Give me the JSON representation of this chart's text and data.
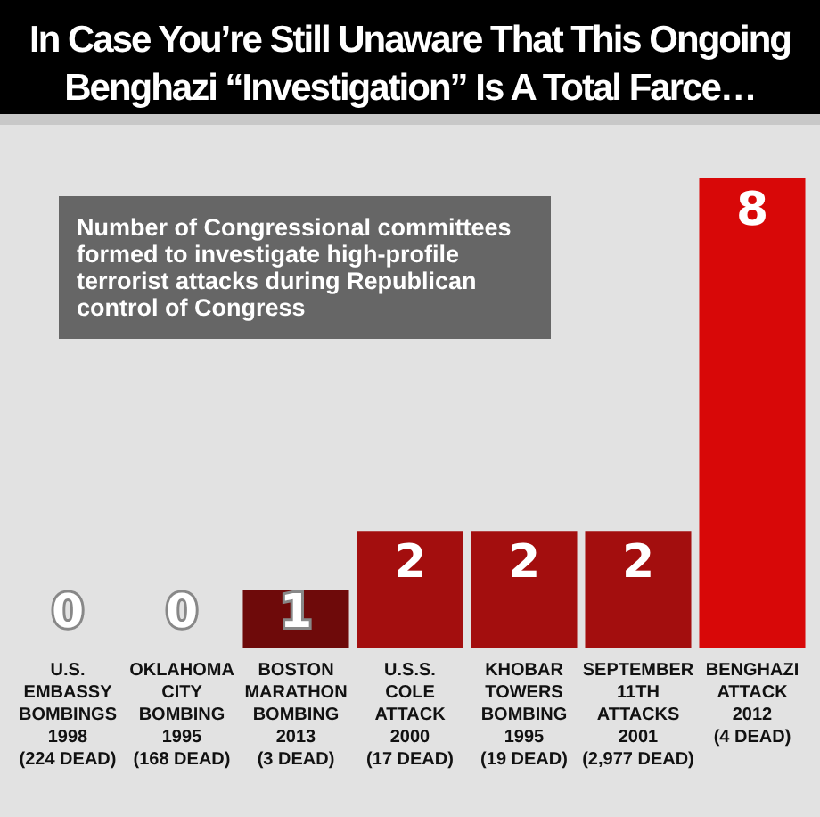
{
  "chart_data": {
    "type": "bar",
    "title": "In Case You’re Still Unaware That This Ongoing Benghazi “Investigation” Is A Total Farce…",
    "annotations": [
      "Number of Congressional committees formed to investigate high-profile terrorist attacks during Republican control of Congress"
    ],
    "categories": [
      "U.S.\nEMBASSY\nBOMBINGS\n1998\n(224 DEAD)",
      "OKLAHOMA\nCITY\nBOMBING\n1995\n(168 DEAD)",
      "BOSTON\nMARATHON\nBOMBING\n2013\n(3 DEAD)",
      "U.S.S.\nCOLE\nATTACK\n2000\n(17 DEAD)",
      "KHOBAR\nTOWERS\nBOMBING\n1995\n(19 DEAD)",
      "SEPTEMBER\n11TH\nATTACKS\n2001\n(2,977 DEAD)",
      "BENGHAZI\nATTACK\n2012\n(4 DEAD)"
    ],
    "values": [
      0,
      0,
      1,
      2,
      2,
      2,
      8
    ],
    "colors": [
      "#a30e0e",
      "#a30e0e",
      "#6e0a0a",
      "#a30e0e",
      "#a30e0e",
      "#a30e0e",
      "#d80808"
    ],
    "data_labels": true,
    "tick_labels": "x",
    "grid": false,
    "legend": false
  }
}
